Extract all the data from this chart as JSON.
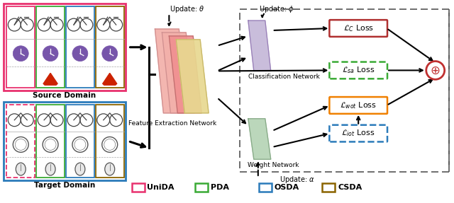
{
  "background_color": "#ffffff",
  "legend_items": [
    {
      "label": "UniDA",
      "color": "#e8316e",
      "linestyle": "solid"
    },
    {
      "label": "PDA",
      "color": "#3aaa35",
      "linestyle": "solid"
    },
    {
      "label": "OSDA",
      "color": "#2b7bba",
      "linestyle": "solid"
    },
    {
      "label": "CSDA",
      "color": "#8B6400",
      "linestyle": "solid"
    }
  ],
  "source_box_color": "#e8316e",
  "target_box_color": "#2b7bba",
  "feature_net_colors": [
    "#f4a6a0",
    "#f4a6a0",
    "#f4a6a0",
    "#e8d898"
  ],
  "class_net_color": "#c5b8d8",
  "weight_net_color": "#b5d4b5",
  "loss_c_color": "#b03030",
  "loss_sa_color": "#3aaa35",
  "loss_wot_color": "#f08000",
  "loss_iot_color": "#2b7bba",
  "sum_color": "#c03030",
  "outer_dashed_color": "#555555",
  "font_size": 7,
  "source_inner_colors": [
    "#e8316e",
    "#3aaa35",
    "#2b7bba",
    "#8B6400"
  ],
  "target_inner_colors": [
    "#e8316e",
    "#3aaa35",
    "#2b7bba",
    "#8B6400"
  ],
  "target_inner_dashed": [
    true,
    false,
    false,
    false
  ]
}
